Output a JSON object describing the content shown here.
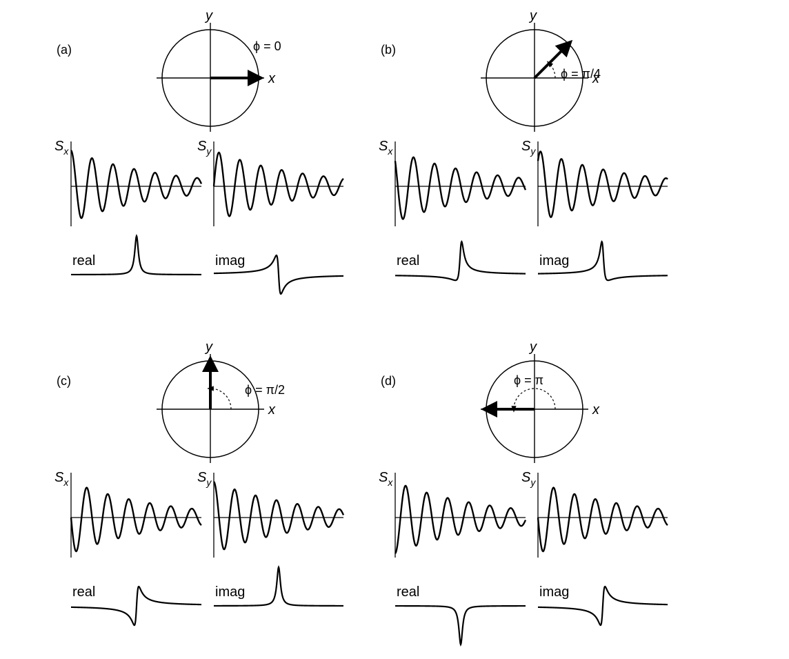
{
  "figure": {
    "axis_labels": {
      "x": "x",
      "y": "y"
    },
    "signal_labels": {
      "sx": "S",
      "sx_sub": "x",
      "sy": "S",
      "sy_sub": "y"
    },
    "spectrum_labels": {
      "real": "real",
      "imag": "imag"
    },
    "panels": [
      {
        "id": "a",
        "label": "(a)",
        "phase_label": "ϕ = 0",
        "phase_rad": 0
      },
      {
        "id": "b",
        "label": "(b)",
        "phase_label": "ϕ = π/4",
        "phase_rad": 0.7853981634
      },
      {
        "id": "c",
        "label": "(c)",
        "phase_label": "ϕ = π/2",
        "phase_rad": 1.5707963268
      },
      {
        "id": "d",
        "label": "(d)",
        "phase_label": "ϕ = π",
        "phase_rad": 3.1415926536
      }
    ]
  }
}
